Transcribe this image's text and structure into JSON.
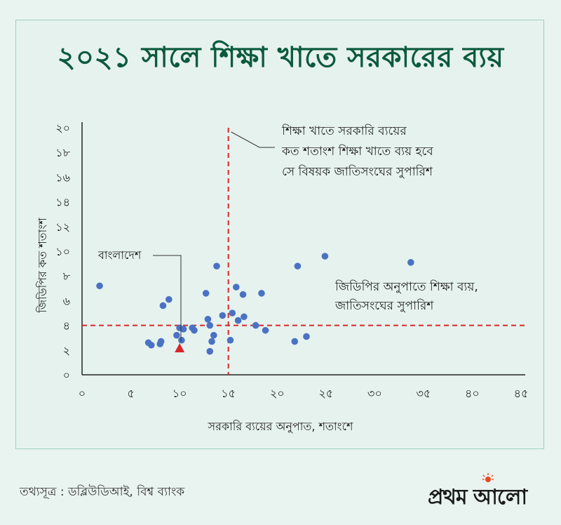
{
  "title": "২০২১ সালে শিক্ষা খাতে সরকারের ব্যয়",
  "source": "তথ্যসূত্র : ডব্লিউডিআই, বিশ্ব ব্যাংক",
  "logo": {
    "text": "প্রথম আলো",
    "sun_color": "#e8471f"
  },
  "colors": {
    "title": "#0b5a3e",
    "point": "#4a72c4",
    "ref_line": "#d9262b",
    "highlight": "#d9262b"
  },
  "chart_data": {
    "type": "scatter",
    "title": "২০২১ সালে শিক্ষা খাতে সরকারের ব্যয়",
    "xlabel": "সরকারি ব্যয়ের অনুপাত, শতাংশে",
    "ylabel": "জিডিপির কত শতাংশ",
    "xlim": [
      0,
      45
    ],
    "ylim": [
      0,
      20
    ],
    "x_ticks": [
      0,
      5,
      10,
      15,
      20,
      25,
      30,
      35,
      40,
      45
    ],
    "x_tick_labels": [
      "০",
      "৫",
      "১০",
      "১৫",
      "২০",
      "২৫",
      "৩০",
      "৩৫",
      "৪০",
      "৪৫"
    ],
    "y_ticks": [
      0,
      2,
      4,
      6,
      8,
      10,
      12,
      14,
      16,
      18,
      20
    ],
    "y_tick_labels": [
      "০",
      "২",
      "৪",
      "৬",
      "৮",
      "১০",
      "১২",
      "১৪",
      "১৬",
      "১৮",
      "২০"
    ],
    "grid": false,
    "points": [
      {
        "x": 1.8,
        "y": 7.2
      },
      {
        "x": 6.8,
        "y": 2.6
      },
      {
        "x": 7.1,
        "y": 2.4
      },
      {
        "x": 8.0,
        "y": 2.5
      },
      {
        "x": 8.1,
        "y": 2.7
      },
      {
        "x": 8.3,
        "y": 5.6
      },
      {
        "x": 8.9,
        "y": 6.1
      },
      {
        "x": 9.7,
        "y": 3.2
      },
      {
        "x": 10.0,
        "y": 3.8
      },
      {
        "x": 10.2,
        "y": 2.8
      },
      {
        "x": 10.4,
        "y": 3.7
      },
      {
        "x": 11.3,
        "y": 3.8
      },
      {
        "x": 11.5,
        "y": 3.6
      },
      {
        "x": 12.7,
        "y": 6.6
      },
      {
        "x": 12.9,
        "y": 4.5
      },
      {
        "x": 13.1,
        "y": 4.0
      },
      {
        "x": 13.3,
        "y": 2.7
      },
      {
        "x": 13.5,
        "y": 3.2
      },
      {
        "x": 13.8,
        "y": 8.8
      },
      {
        "x": 13.1,
        "y": 1.9
      },
      {
        "x": 14.4,
        "y": 4.8
      },
      {
        "x": 15.2,
        "y": 2.8
      },
      {
        "x": 15.4,
        "y": 5.0
      },
      {
        "x": 15.8,
        "y": 7.1
      },
      {
        "x": 16.0,
        "y": 4.4
      },
      {
        "x": 16.5,
        "y": 6.5
      },
      {
        "x": 16.6,
        "y": 4.7
      },
      {
        "x": 17.8,
        "y": 4.0
      },
      {
        "x": 18.4,
        "y": 6.6
      },
      {
        "x": 18.8,
        "y": 3.6
      },
      {
        "x": 21.8,
        "y": 2.7
      },
      {
        "x": 22.1,
        "y": 8.8
      },
      {
        "x": 23.0,
        "y": 3.1
      },
      {
        "x": 24.9,
        "y": 9.6
      },
      {
        "x": 33.7,
        "y": 9.1
      }
    ],
    "highlight": {
      "label": "বাংলাদেশ",
      "x": 10.0,
      "y": 2.1,
      "marker": "triangle"
    },
    "reference_lines": [
      {
        "axis": "x",
        "value": 15,
        "label": "শিক্ষা খাতে সরকারি ব্যয়ের কত শতাংশ শিক্ষা খাতে ব্যয় হবে সে বিষয়ক জাতিসংঘের সুপারিশ",
        "label_lines": [
          "শিক্ষা খাতে সরকারি ব্যয়ের",
          "কত শতাংশ শিক্ষা খাতে ব্যয় হবে",
          "সে বিষয়ক জাতিসংঘের সুপারিশ"
        ]
      },
      {
        "axis": "y",
        "value": 4,
        "label": "জিডিপির অনুপাতে শিক্ষা ব্যয়, জাতিসংঘের সুপারিশ",
        "label_lines": [
          "জিডিপির অনুপাতে শিক্ষা ব্যয়,",
          "জাতিসংঘের সুপারিশ"
        ]
      }
    ]
  }
}
